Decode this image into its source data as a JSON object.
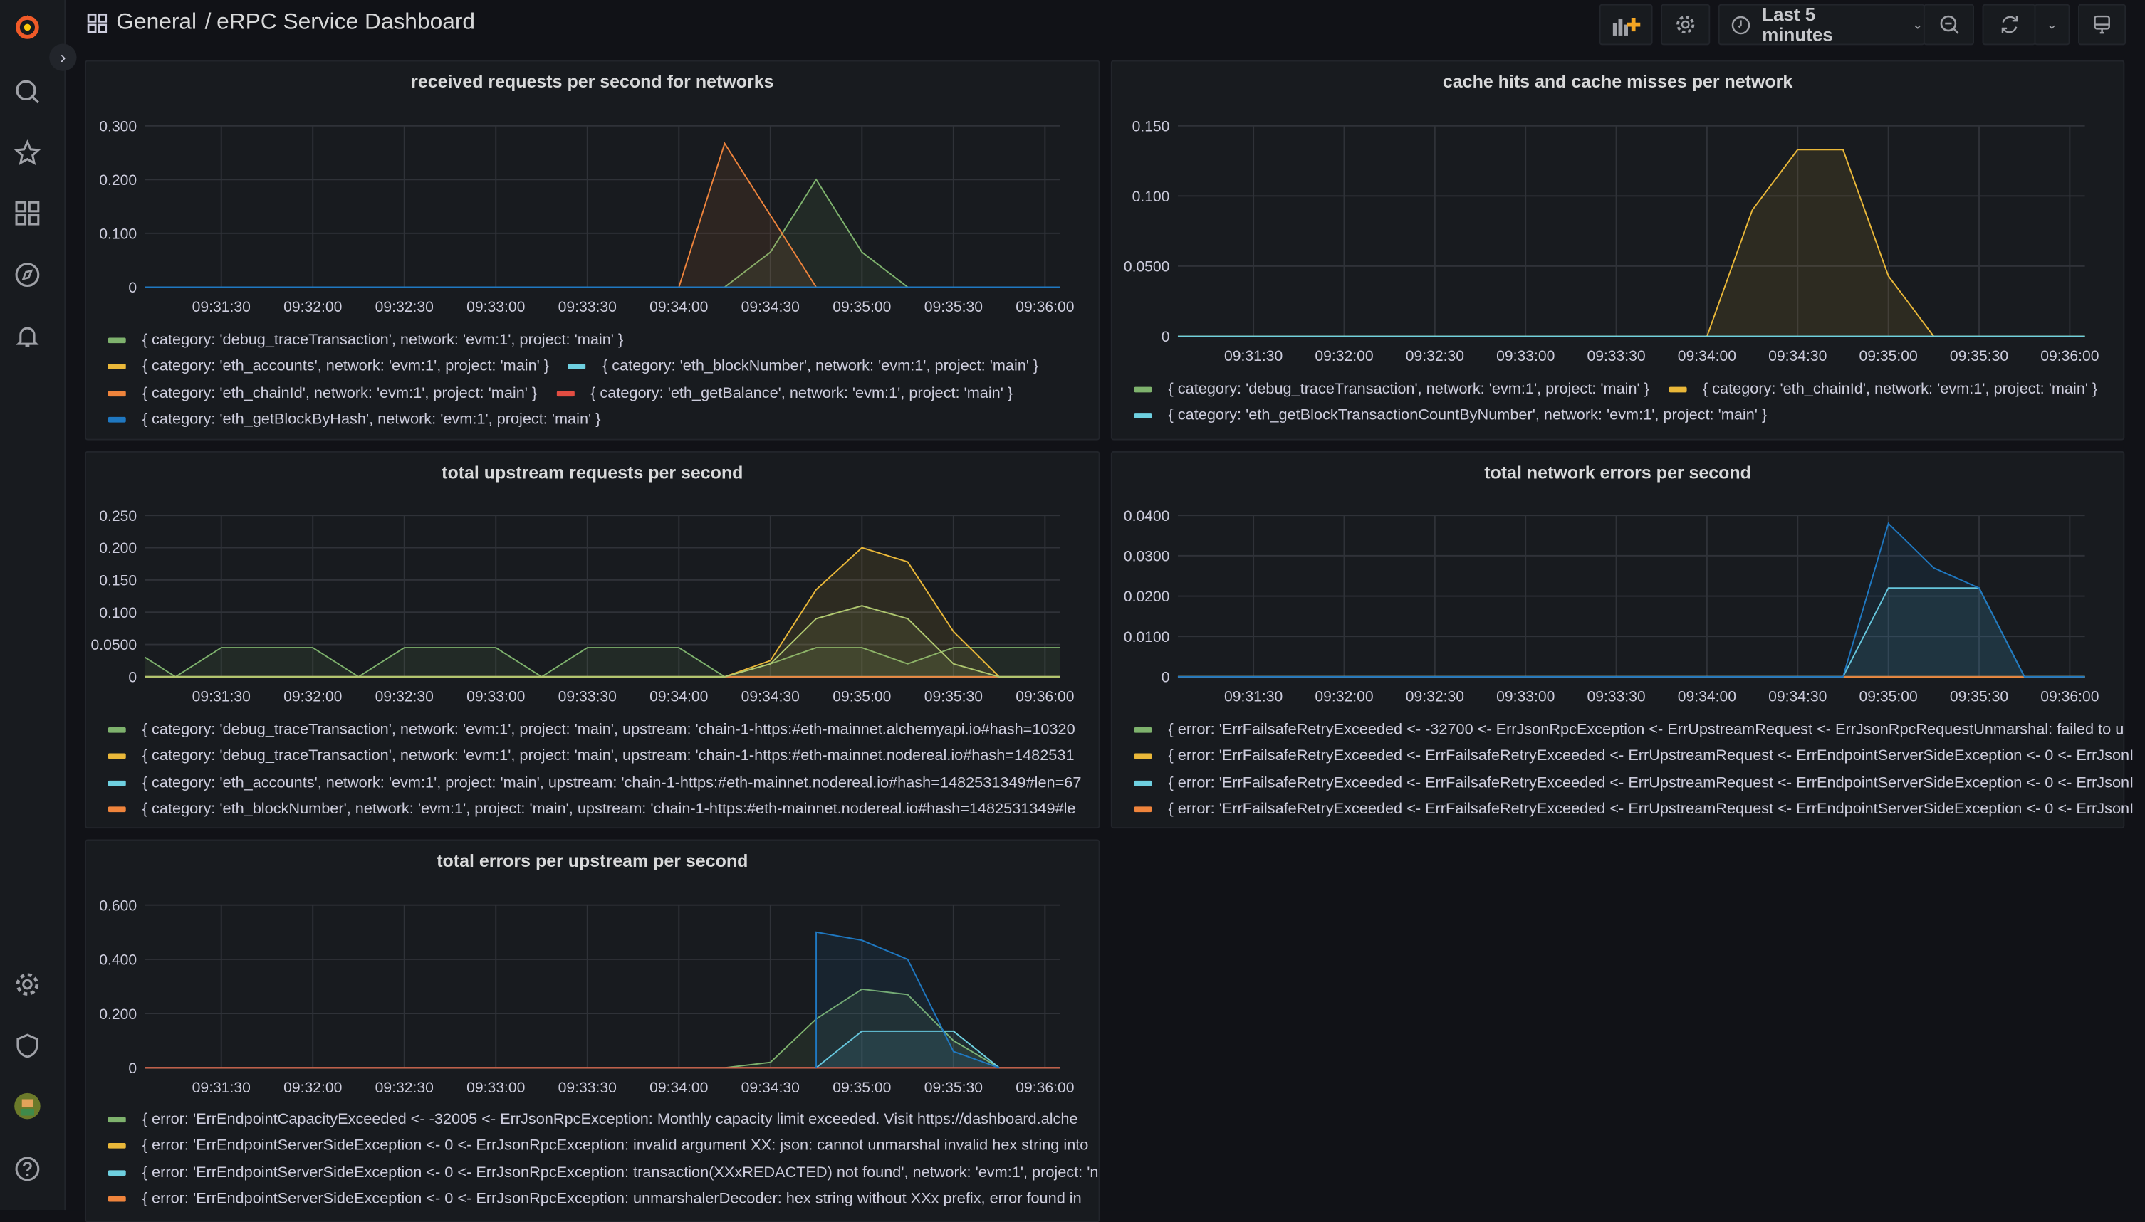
{
  "header": {
    "breadcrumb_root": "General",
    "breadcrumb_sep": "/",
    "dashboard_title": "eRPC Service Dashboard"
  },
  "toolbar": {
    "time_range": "Last 5 minutes",
    "icons": [
      "add-panel-icon",
      "gear-icon",
      "clock-icon",
      "chevron-down-icon",
      "zoom-out-icon",
      "refresh-icon",
      "chevron-down-icon",
      "tv-icon"
    ]
  },
  "sidebar": {
    "top_icons": [
      "grafana-logo",
      "search-icon",
      "star-icon",
      "dashboards-icon",
      "compass-icon",
      "bell-icon"
    ],
    "bottom_icons": [
      "gear-icon",
      "shield-icon",
      "avatar",
      "help-icon"
    ]
  },
  "colors": {
    "green": "#7eb26d",
    "yellow": "#eab839",
    "cyan": "#6ed0e0",
    "orange": "#ef843c",
    "red": "#e24d42",
    "blue": "#1f78c1"
  },
  "chart_data": [
    {
      "type": "area",
      "title": "received requests per second for networks",
      "xlim": [
        "09:31:05",
        "09:36:05"
      ],
      "x_ticks": [
        "09:31:30",
        "09:32:00",
        "09:32:30",
        "09:33:00",
        "09:33:30",
        "09:34:00",
        "09:34:30",
        "09:35:00",
        "09:35:30",
        "09:36:00"
      ],
      "ylim": [
        0,
        0.3
      ],
      "y_ticks": [
        {
          "v": 0,
          "label": "0"
        },
        {
          "v": 0.1,
          "label": "0.100"
        },
        {
          "v": 0.2,
          "label": "0.200"
        },
        {
          "v": 0.3,
          "label": "0.300"
        }
      ],
      "grid": true,
      "legend_position": "bottom",
      "series": [
        {
          "name": "{ category: 'debug_traceTransaction', network: 'evm:1', project: 'main' }",
          "color": "#7eb26d",
          "points": [
            [
              "09:31:05",
              0
            ],
            [
              "09:34:15",
              0
            ],
            [
              "09:34:30",
              0.065
            ],
            [
              "09:34:45",
              0.2
            ],
            [
              "09:35:00",
              0.065
            ],
            [
              "09:35:15",
              0
            ],
            [
              "09:36:05",
              0
            ]
          ]
        },
        {
          "name": "{ category: 'eth_accounts', network: 'evm:1', project: 'main' }",
          "color": "#eab839",
          "points": [
            [
              "09:31:05",
              0
            ],
            [
              "09:36:05",
              0
            ]
          ]
        },
        {
          "name": "{ category: 'eth_blockNumber', network: 'evm:1', project: 'main' }",
          "color": "#6ed0e0",
          "points": [
            [
              "09:31:05",
              0
            ],
            [
              "09:36:05",
              0
            ]
          ]
        },
        {
          "name": "{ category: 'eth_chainId', network: 'evm:1', project: 'main' }",
          "color": "#ef843c",
          "points": [
            [
              "09:31:05",
              0
            ],
            [
              "09:34:00",
              0
            ],
            [
              "09:34:15",
              0.267
            ],
            [
              "09:34:45",
              0
            ],
            [
              "09:36:05",
              0
            ]
          ]
        },
        {
          "name": "{ category: 'eth_getBalance', network: 'evm:1', project: 'main' }",
          "color": "#e24d42",
          "points": [
            [
              "09:31:05",
              0
            ],
            [
              "09:36:05",
              0
            ]
          ]
        },
        {
          "name": "{ category: 'eth_getBlockByHash', network: 'evm:1', project: 'main' }",
          "color": "#1f78c1",
          "points": [
            [
              "09:31:05",
              0
            ],
            [
              "09:36:05",
              0
            ]
          ]
        }
      ],
      "legend_rows": [
        [
          0
        ],
        [
          1,
          2
        ],
        [
          3,
          4
        ],
        [
          5
        ]
      ]
    },
    {
      "type": "area",
      "title": "cache hits and cache misses per network",
      "xlim": [
        "09:31:05",
        "09:36:05"
      ],
      "x_ticks": [
        "09:31:30",
        "09:32:00",
        "09:32:30",
        "09:33:00",
        "09:33:30",
        "09:34:00",
        "09:34:30",
        "09:35:00",
        "09:35:30",
        "09:36:00"
      ],
      "ylim": [
        0,
        0.15
      ],
      "y_ticks": [
        {
          "v": 0,
          "label": "0"
        },
        {
          "v": 0.05,
          "label": "0.0500"
        },
        {
          "v": 0.1,
          "label": "0.100"
        },
        {
          "v": 0.15,
          "label": "0.150"
        }
      ],
      "grid": true,
      "legend_position": "bottom",
      "series": [
        {
          "name": "{ category: 'debug_traceTransaction', network: 'evm:1', project: 'main' }",
          "color": "#7eb26d",
          "points": [
            [
              "09:31:05",
              0
            ],
            [
              "09:36:05",
              0
            ]
          ]
        },
        {
          "name": "{ category: 'eth_chainId', network: 'evm:1', project: 'main' }",
          "color": "#eab839",
          "points": [
            [
              "09:31:05",
              0
            ],
            [
              "09:34:00",
              0
            ],
            [
              "09:34:15",
              0.09
            ],
            [
              "09:34:30",
              0.133
            ],
            [
              "09:34:45",
              0.133
            ],
            [
              "09:35:00",
              0.043
            ],
            [
              "09:35:15",
              0
            ],
            [
              "09:36:05",
              0
            ]
          ]
        },
        {
          "name": "{ category: 'eth_getBlockTransactionCountByNumber', network: 'evm:1', project: 'main' }",
          "color": "#6ed0e0",
          "points": [
            [
              "09:31:05",
              0
            ],
            [
              "09:36:05",
              0
            ]
          ]
        }
      ],
      "legend_rows": [
        [
          0,
          1
        ],
        [
          2
        ]
      ]
    },
    {
      "type": "area",
      "title": "total upstream requests per second",
      "xlim": [
        "09:31:05",
        "09:36:05"
      ],
      "x_ticks": [
        "09:31:30",
        "09:32:00",
        "09:32:30",
        "09:33:00",
        "09:33:30",
        "09:34:00",
        "09:34:30",
        "09:35:00",
        "09:35:30",
        "09:36:00"
      ],
      "ylim": [
        0,
        0.25
      ],
      "y_ticks": [
        {
          "v": 0,
          "label": "0"
        },
        {
          "v": 0.05,
          "label": "0.0500"
        },
        {
          "v": 0.1,
          "label": "0.100"
        },
        {
          "v": 0.15,
          "label": "0.150"
        },
        {
          "v": 0.2,
          "label": "0.200"
        },
        {
          "v": 0.25,
          "label": "0.250"
        }
      ],
      "grid": true,
      "legend_position": "bottom",
      "series": [
        {
          "name": "{ category: 'debug_traceTransaction', network: 'evm:1', project: 'main', upstream: 'chain-1-https:#eth-mainnet.alchemyapi.io#hash=10320",
          "color": "#7eb26d",
          "points": [
            [
              "09:31:05",
              0.03
            ],
            [
              "09:31:15",
              0
            ],
            [
              "09:31:30",
              0.045
            ],
            [
              "09:32:00",
              0.045
            ],
            [
              "09:32:15",
              0
            ],
            [
              "09:32:30",
              0.045
            ],
            [
              "09:33:00",
              0.045
            ],
            [
              "09:33:15",
              0
            ],
            [
              "09:33:30",
              0.045
            ],
            [
              "09:34:00",
              0.045
            ],
            [
              "09:34:15",
              0
            ],
            [
              "09:34:30",
              0.02
            ],
            [
              "09:34:45",
              0.045
            ],
            [
              "09:35:00",
              0.045
            ],
            [
              "09:35:15",
              0.02
            ],
            [
              "09:35:30",
              0.045
            ],
            [
              "09:36:05",
              0.045
            ]
          ]
        },
        {
          "name": "{ category: 'debug_traceTransaction', network: 'evm:1', project: 'main', upstream: 'chain-1-https:#eth-mainnet.nodereal.io#hash=1482531",
          "color": "#eab839",
          "points": [
            [
              "09:31:05",
              0
            ],
            [
              "09:34:15",
              0
            ],
            [
              "09:34:30",
              0.025
            ],
            [
              "09:34:45",
              0.135
            ],
            [
              "09:35:00",
              0.2
            ],
            [
              "09:35:15",
              0.178
            ],
            [
              "09:35:30",
              0.07
            ],
            [
              "09:35:45",
              0
            ],
            [
              "09:36:05",
              0
            ]
          ]
        },
        {
          "name": "{ category: 'eth_accounts', network: 'evm:1', project: 'main', upstream: 'chain-1-https:#eth-mainnet.nodereal.io#hash=1482531349#len=67",
          "color": "#6ed0e0",
          "points": [
            [
              "09:31:05",
              0
            ],
            [
              "09:36:05",
              0
            ]
          ]
        },
        {
          "name": "{ category: 'eth_blockNumber', network: 'evm:1', project: 'main', upstream: 'chain-1-https:#eth-mainnet.nodereal.io#hash=1482531349#le",
          "color": "#ef843c",
          "points": [
            [
              "09:31:05",
              0
            ],
            [
              "09:36:05",
              0
            ]
          ]
        },
        {
          "color": "#b0c870",
          "points": [
            [
              "09:31:05",
              0
            ],
            [
              "09:34:15",
              0
            ],
            [
              "09:34:30",
              0.02
            ],
            [
              "09:34:45",
              0.09
            ],
            [
              "09:35:00",
              0.11
            ],
            [
              "09:35:15",
              0.09
            ],
            [
              "09:35:30",
              0.02
            ],
            [
              "09:35:45",
              0
            ],
            [
              "09:36:05",
              0
            ]
          ]
        }
      ],
      "legend_rows": [
        [
          0
        ],
        [
          1
        ],
        [
          2
        ],
        [
          3
        ]
      ]
    },
    {
      "type": "area",
      "title": "total network errors per second",
      "xlim": [
        "09:31:05",
        "09:36:05"
      ],
      "x_ticks": [
        "09:31:30",
        "09:32:00",
        "09:32:30",
        "09:33:00",
        "09:33:30",
        "09:34:00",
        "09:34:30",
        "09:35:00",
        "09:35:30",
        "09:36:00"
      ],
      "ylim": [
        0,
        0.04
      ],
      "y_ticks": [
        {
          "v": 0,
          "label": "0"
        },
        {
          "v": 0.01,
          "label": "0.0100"
        },
        {
          "v": 0.02,
          "label": "0.0200"
        },
        {
          "v": 0.03,
          "label": "0.0300"
        },
        {
          "v": 0.04,
          "label": "0.0400"
        }
      ],
      "grid": true,
      "legend_position": "bottom",
      "series": [
        {
          "name": "{ error: 'ErrFailsafeRetryExceeded <- -32700 <- ErrJsonRpcException <- ErrUpstreamRequest <- ErrJsonRpcRequestUnmarshal: failed to u",
          "color": "#7eb26d",
          "points": [
            [
              "09:31:05",
              0
            ],
            [
              "09:36:05",
              0
            ]
          ]
        },
        {
          "name": "{ error: 'ErrFailsafeRetryExceeded <- ErrFailsafeRetryExceeded <- ErrUpstreamRequest <- ErrEndpointServerSideException <- 0 <- ErrJsonI",
          "color": "#eab839",
          "points": [
            [
              "09:31:05",
              0
            ],
            [
              "09:36:05",
              0
            ]
          ]
        },
        {
          "name": "{ error: 'ErrFailsafeRetryExceeded <- ErrFailsafeRetryExceeded <- ErrUpstreamRequest <- ErrEndpointServerSideException <- 0 <- ErrJsonI",
          "color": "#6ed0e0",
          "points": [
            [
              "09:31:05",
              0
            ],
            [
              "09:34:45",
              0
            ],
            [
              "09:35:00",
              0.022
            ],
            [
              "09:35:30",
              0.022
            ],
            [
              "09:35:45",
              0
            ],
            [
              "09:36:05",
              0
            ]
          ]
        },
        {
          "name": "{ error: 'ErrFailsafeRetryExceeded <- ErrFailsafeRetryExceeded <- ErrUpstreamRequest <- ErrEndpointServerSideException <- 0 <- ErrJsonI",
          "color": "#ef843c",
          "points": [
            [
              "09:31:05",
              0
            ],
            [
              "09:36:05",
              0
            ]
          ]
        },
        {
          "color": "#1f78c1",
          "points": [
            [
              "09:31:05",
              0
            ],
            [
              "09:34:45",
              0
            ],
            [
              "09:35:00",
              0.038
            ],
            [
              "09:35:15",
              0.027
            ],
            [
              "09:35:30",
              0.022
            ],
            [
              "09:35:45",
              0
            ],
            [
              "09:36:05",
              0
            ]
          ]
        }
      ],
      "legend_rows": [
        [
          0
        ],
        [
          1
        ],
        [
          2
        ],
        [
          3
        ]
      ]
    },
    {
      "type": "area",
      "title": "total errors per upstream per second",
      "xlim": [
        "09:31:05",
        "09:36:05"
      ],
      "x_ticks": [
        "09:31:30",
        "09:32:00",
        "09:32:30",
        "09:33:00",
        "09:33:30",
        "09:34:00",
        "09:34:30",
        "09:35:00",
        "09:35:30",
        "09:36:00"
      ],
      "ylim": [
        0,
        0.6
      ],
      "y_ticks": [
        {
          "v": 0,
          "label": "0"
        },
        {
          "v": 0.2,
          "label": "0.200"
        },
        {
          "v": 0.4,
          "label": "0.400"
        },
        {
          "v": 0.6,
          "label": "0.600"
        }
      ],
      "grid": true,
      "legend_position": "bottom",
      "series": [
        {
          "name": "{ error: 'ErrEndpointCapacityExceeded <- -32005 <- ErrJsonRpcException: Monthly capacity limit exceeded. Visit https://dashboard.alche",
          "color": "#7eb26d",
          "points": [
            [
              "09:31:05",
              0
            ],
            [
              "09:34:15",
              0
            ],
            [
              "09:34:30",
              0.02
            ],
            [
              "09:34:45",
              0.18
            ],
            [
              "09:35:00",
              0.29
            ],
            [
              "09:35:15",
              0.27
            ],
            [
              "09:35:30",
              0.1
            ],
            [
              "09:35:45",
              0
            ],
            [
              "09:36:05",
              0
            ]
          ]
        },
        {
          "name": "{ error: 'ErrEndpointServerSideException <- 0 <- ErrJsonRpcException: invalid argument XX: json: cannot unmarshal invalid hex string into",
          "color": "#eab839",
          "points": [
            [
              "09:31:05",
              0
            ],
            [
              "09:36:05",
              0
            ]
          ]
        },
        {
          "name": "{ error: 'ErrEndpointServerSideException <- 0 <- ErrJsonRpcException: transaction(XXxREDACTED) not found', network: 'evm:1', project: 'n",
          "color": "#6ed0e0",
          "points": [
            [
              "09:31:05",
              0
            ],
            [
              "09:34:45",
              0
            ],
            [
              "09:35:00",
              0.135
            ],
            [
              "09:35:30",
              0.135
            ],
            [
              "09:35:45",
              0
            ],
            [
              "09:36:05",
              0
            ]
          ]
        },
        {
          "name": "{ error: 'ErrEndpointServerSideException <- 0 <- ErrJsonRpcException: unmarshalerDecoder: hex string without XXx prefix, error found in",
          "color": "#ef843c",
          "points": [
            [
              "09:31:05",
              0
            ],
            [
              "09:36:05",
              0
            ]
          ]
        },
        {
          "color": "#e24d42",
          "points": [
            [
              "09:31:05",
              0
            ],
            [
              "09:36:05",
              0
            ]
          ]
        },
        {
          "color": "#1f78c1",
          "points": [
            [
              "09:34:45",
              0
            ],
            [
              "09:34:45",
              0.5
            ],
            [
              "09:35:00",
              0.47
            ],
            [
              "09:35:15",
              0.4
            ],
            [
              "09:35:30",
              0.06
            ],
            [
              "09:35:45",
              0
            ]
          ]
        }
      ],
      "legend_rows": [
        [
          0
        ],
        [
          1
        ],
        [
          2
        ],
        [
          3
        ]
      ]
    }
  ]
}
